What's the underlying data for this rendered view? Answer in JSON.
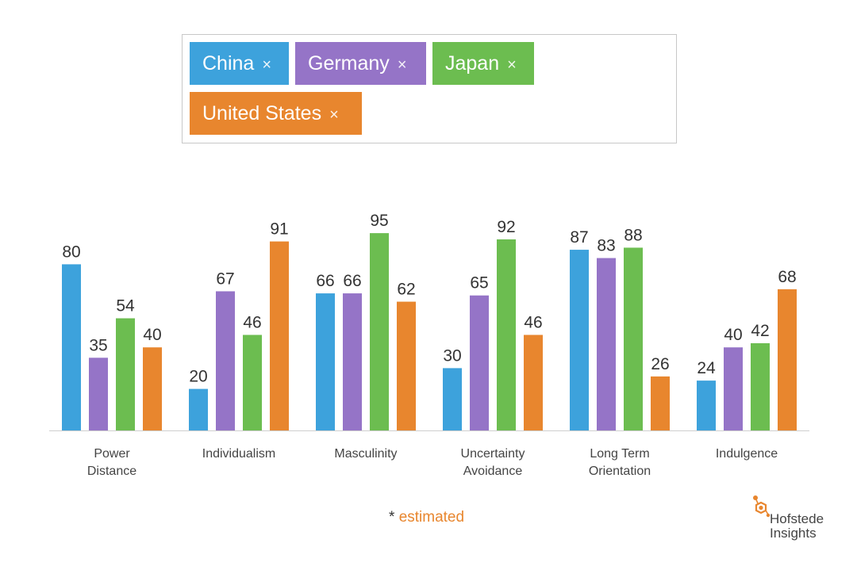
{
  "filter": {
    "tags": [
      {
        "label": "China",
        "remove": "×",
        "color": "#3da2dc"
      },
      {
        "label": "Germany",
        "remove": "×",
        "color": "#9574c7"
      },
      {
        "label": "Japan",
        "remove": "×",
        "color": "#6cbd50"
      },
      {
        "label": "United States",
        "remove": "×",
        "color": "#e8862e"
      }
    ]
  },
  "chart_data": {
    "type": "bar",
    "categories": [
      [
        "Power",
        "Distance"
      ],
      [
        "Individualism"
      ],
      [
        "Masculinity"
      ],
      [
        "Uncertainty",
        "Avoidance"
      ],
      [
        "Long Term",
        "Orientation"
      ],
      [
        "Indulgence"
      ]
    ],
    "series": [
      {
        "name": "China",
        "color": "#3da2dc",
        "values": [
          80,
          20,
          66,
          30,
          87,
          24
        ]
      },
      {
        "name": "Germany",
        "color": "#9574c7",
        "values": [
          35,
          67,
          66,
          65,
          83,
          40
        ]
      },
      {
        "name": "Japan",
        "color": "#6cbd50",
        "values": [
          54,
          46,
          95,
          92,
          88,
          42
        ]
      },
      {
        "name": "United States",
        "color": "#e8862e",
        "values": [
          40,
          91,
          62,
          46,
          26,
          68
        ]
      }
    ],
    "ylim": [
      0,
      100
    ],
    "data_labels": true,
    "grid": false
  },
  "footnote": {
    "asterisk": "*",
    "text": "estimated"
  },
  "logo": {
    "line1": "Hofstede",
    "line2": "Insights",
    "color": "#e8862e"
  }
}
